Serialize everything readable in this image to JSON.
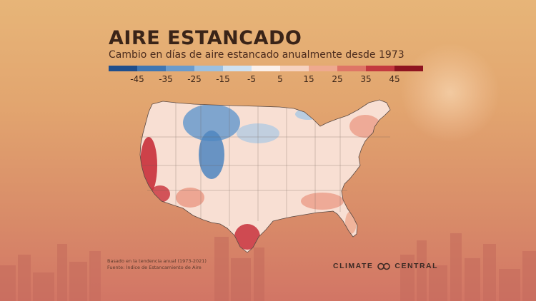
{
  "title": "AIRE ESTANCADO",
  "subtitle": "Cambio en días de aire estancado anualmente desde 1973",
  "legend": {
    "labels": [
      "-45",
      "-35",
      "-25",
      "-15",
      "-5",
      "5",
      "15",
      "25",
      "35",
      "45"
    ],
    "colors": [
      "#1f4e8c",
      "#3f76b3",
      "#6a9bcc",
      "#9cc0e0",
      "#cfe1f0",
      "#fbf0ea",
      "#f6d2c0",
      "#eea98f",
      "#de7566",
      "#c3393f",
      "#8e1420"
    ]
  },
  "footnote": {
    "line1": "Basado en la tendencia anual (1973-2021)",
    "line2": "Fuente: Índice de Estancamiento de Aire"
  },
  "logo": {
    "left": "CLIMATE",
    "right": "CENTRAL"
  },
  "map": {
    "name": "contiguous-united-states",
    "colors": {
      "base": "#f8dfd3",
      "blue_strong": "#4f86c0",
      "blue_light": "#a9c8e4",
      "red_strong": "#c8303a",
      "red_light": "#e9937e"
    }
  }
}
